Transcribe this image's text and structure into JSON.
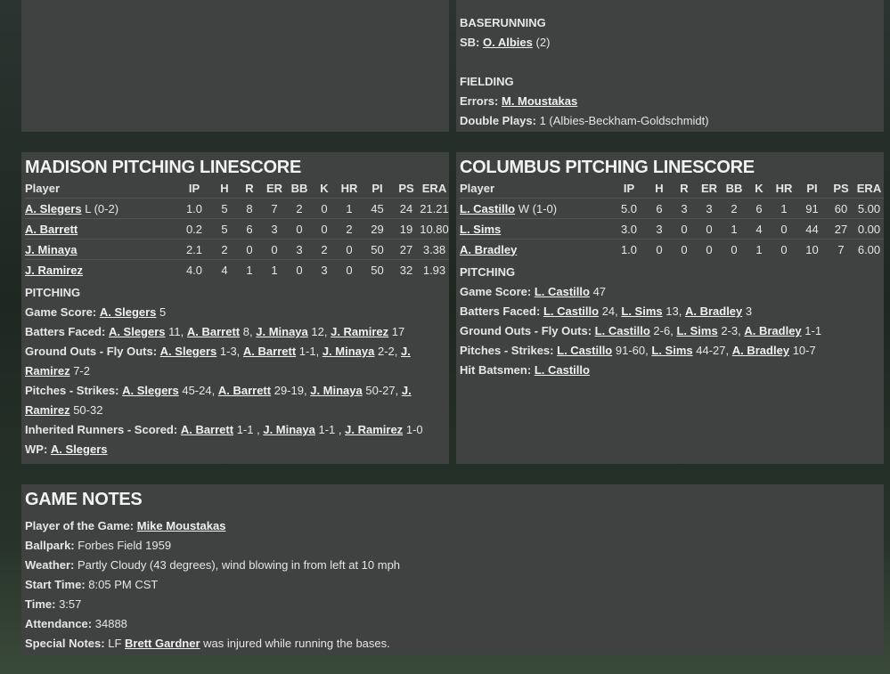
{
  "baserunning_fielding": {
    "sections": [
      {
        "heading": "BASERUNNING",
        "lines": [
          {
            "label": "SB:",
            "parts": [
              {
                "link": "O. Albies"
              },
              "(2)"
            ]
          }
        ]
      },
      {
        "heading": "FIELDING",
        "lines": [
          {
            "label": "Errors:",
            "parts": [
              {
                "link": "M. Moustakas"
              }
            ]
          },
          {
            "label": "Double Plays:",
            "parts": [
              "1 (Albies-Beckham-Goldschmidt)"
            ]
          }
        ]
      }
    ]
  },
  "madison": {
    "title": "MADISON PITCHING LINESCORE",
    "columns": [
      "Player",
      "IP",
      "H",
      "R",
      "ER",
      "BB",
      "K",
      "HR",
      "PI",
      "PS",
      "ERA"
    ],
    "rows": [
      {
        "player": "A. Slegers",
        "decision": "L (0-2)",
        "stats": [
          "1.0",
          "5",
          "8",
          "7",
          "2",
          "0",
          "1",
          "45",
          "24",
          "21.21"
        ]
      },
      {
        "player": "A. Barrett",
        "stats": [
          "0.2",
          "5",
          "6",
          "3",
          "0",
          "0",
          "2",
          "29",
          "19",
          "10.80"
        ]
      },
      {
        "player": "J. Minaya",
        "stats": [
          "2.1",
          "2",
          "0",
          "0",
          "3",
          "2",
          "0",
          "50",
          "27",
          "3.38"
        ]
      },
      {
        "player": "J. Ramirez",
        "stats": [
          "4.0",
          "4",
          "1",
          "1",
          "0",
          "3",
          "0",
          "50",
          "32",
          "1.93"
        ]
      }
    ],
    "notes": {
      "heading": "PITCHING",
      "lines": [
        {
          "label": "Game Score:",
          "parts": [
            {
              "link": "A. Slegers"
            },
            "5"
          ]
        },
        {
          "label": "Batters Faced:",
          "parts": [
            {
              "link": "A. Slegers"
            },
            "11,",
            {
              "link": "A. Barrett"
            },
            "8,",
            {
              "link": "J. Minaya"
            },
            "12,",
            {
              "link": "J. Ramirez"
            },
            "17"
          ]
        },
        {
          "label": "Ground Outs - Fly Outs:",
          "parts": [
            {
              "link": "A. Slegers"
            },
            "1-3,",
            {
              "link": "A. Barrett"
            },
            "1-1,",
            {
              "link": "J. Minaya"
            },
            "2-2,",
            {
              "link": "J. Ramirez"
            },
            "7-2"
          ]
        },
        {
          "label": "Pitches - Strikes:",
          "parts": [
            {
              "link": "A. Slegers"
            },
            "45-24,",
            {
              "link": "A. Barrett"
            },
            "29-19,",
            {
              "link": "J. Minaya"
            },
            "50-27,",
            {
              "link": "J. Ramirez"
            },
            "50-32"
          ]
        },
        {
          "label": "Inherited Runners - Scored:",
          "parts": [
            {
              "link": "A. Barrett"
            },
            "1-1 ,",
            {
              "link": "J. Minaya"
            },
            "1-1 ,",
            {
              "link": "J. Ramirez"
            },
            "1-0"
          ]
        },
        {
          "label": "WP:",
          "parts": [
            {
              "link": "A. Slegers"
            }
          ]
        }
      ]
    }
  },
  "columbus": {
    "title": "COLUMBUS PITCHING LINESCORE",
    "columns": [
      "Player",
      "IP",
      "H",
      "R",
      "ER",
      "BB",
      "K",
      "HR",
      "PI",
      "PS",
      "ERA"
    ],
    "rows": [
      {
        "player": "L. Castillo",
        "decision": "W (1-0)",
        "stats": [
          "5.0",
          "6",
          "3",
          "3",
          "2",
          "6",
          "1",
          "91",
          "60",
          "5.00"
        ]
      },
      {
        "player": "L. Sims",
        "stats": [
          "3.0",
          "3",
          "0",
          "0",
          "1",
          "4",
          "0",
          "44",
          "27",
          "0.00"
        ]
      },
      {
        "player": "A. Bradley",
        "stats": [
          "1.0",
          "0",
          "0",
          "0",
          "0",
          "1",
          "0",
          "10",
          "7",
          "6.00"
        ]
      }
    ],
    "notes": {
      "heading": "PITCHING",
      "lines": [
        {
          "label": "Game Score:",
          "parts": [
            {
              "link": "L. Castillo"
            },
            "47"
          ]
        },
        {
          "label": "Batters Faced:",
          "parts": [
            {
              "link": "L. Castillo"
            },
            "24,",
            {
              "link": "L. Sims"
            },
            "13,",
            {
              "link": "A. Bradley"
            },
            "3"
          ]
        },
        {
          "label": "Ground Outs - Fly Outs:",
          "parts": [
            {
              "link": "L. Castillo"
            },
            "2-6,",
            {
              "link": "L. Sims"
            },
            "2-3,",
            {
              "link": "A. Bradley"
            },
            "1-1"
          ]
        },
        {
          "label": "Pitches - Strikes:",
          "parts": [
            {
              "link": "L. Castillo"
            },
            "91-60,",
            {
              "link": "L. Sims"
            },
            "44-27,",
            {
              "link": "A. Bradley"
            },
            "10-7"
          ]
        },
        {
          "label": "Hit Batsmen:",
          "parts": [
            {
              "link": "L. Castillo"
            }
          ]
        }
      ]
    }
  },
  "game_notes": {
    "title": "GAME NOTES",
    "lines": [
      {
        "label": "Player of the Game:",
        "parts": [
          {
            "link": "Mike Moustakas"
          }
        ]
      },
      {
        "label": "Ballpark:",
        "parts": [
          "Forbes Field 1959"
        ]
      },
      {
        "label": "Weather:",
        "parts": [
          "Partly Cloudy (43 degrees), wind blowing in from left at 10 mph"
        ]
      },
      {
        "label": "Start Time:",
        "parts": [
          "8:05 PM CST"
        ]
      },
      {
        "label": "Time:",
        "parts": [
          "3:57"
        ]
      },
      {
        "label": "Attendance:",
        "parts": [
          "34888"
        ]
      },
      {
        "label": "Special Notes:",
        "parts": [
          "LF",
          {
            "link": "Brett Gardner"
          },
          "was injured while running the bases."
        ]
      }
    ]
  }
}
